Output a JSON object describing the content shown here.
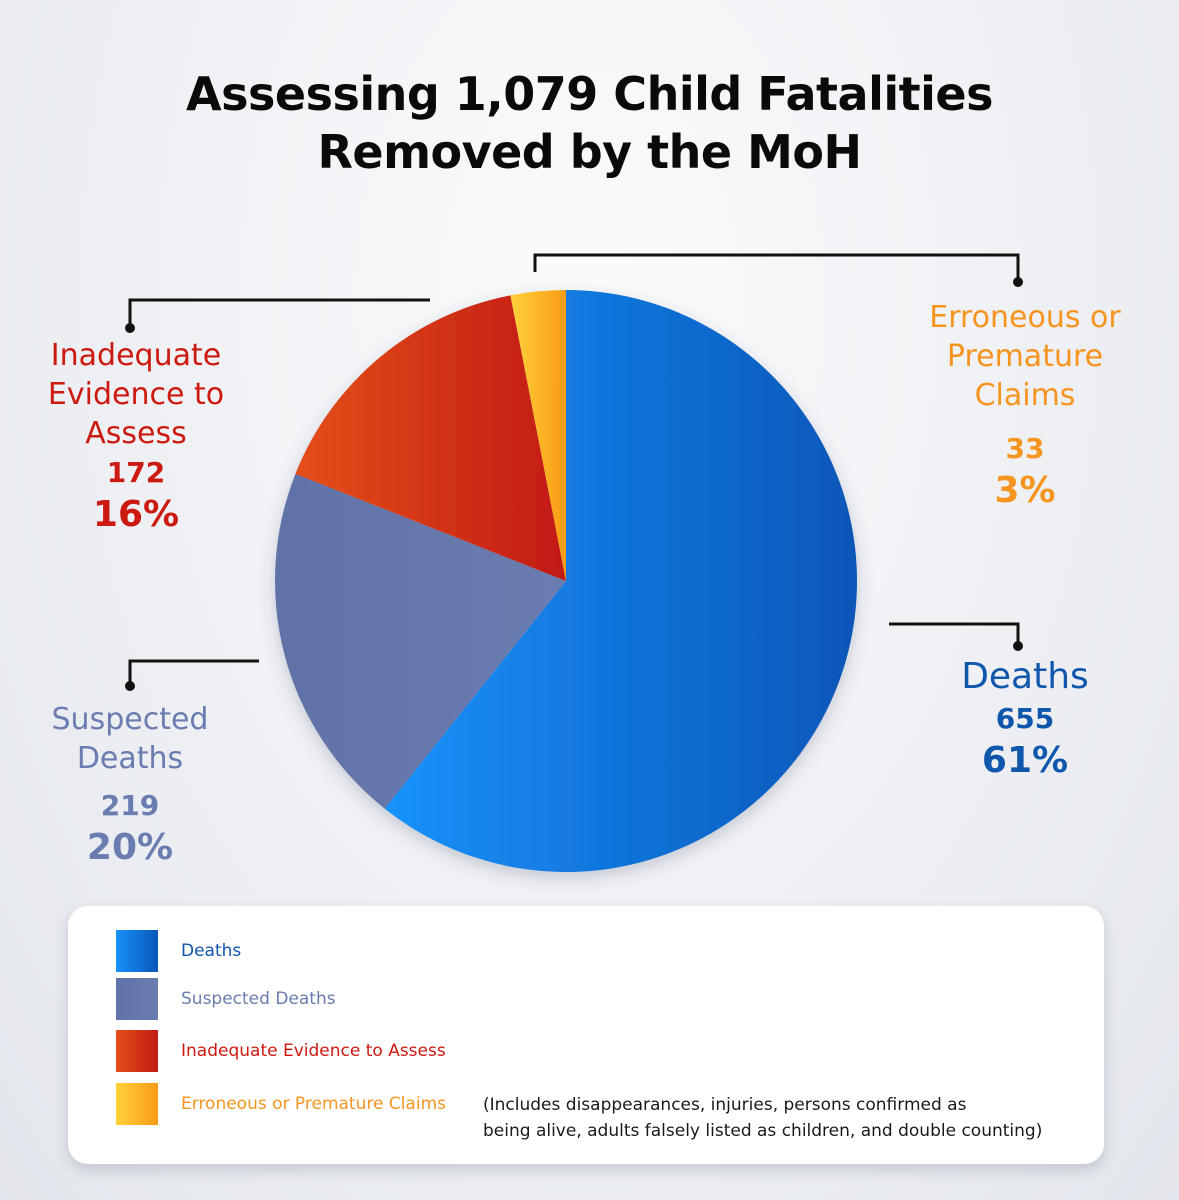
{
  "title": {
    "line1": "Assessing 1,079 Child Fatalities",
    "line2": "Removed by the MoH"
  },
  "chart_data": {
    "type": "pie",
    "total": 1079,
    "slices": [
      {
        "label": "Deaths",
        "value": 655,
        "percent": "61%",
        "color": "#1178e0",
        "label_color": "#0f56ad"
      },
      {
        "label": "Suspected Deaths",
        "value": 219,
        "percent": "20%",
        "color": "#6778ab",
        "label_color": "#6a7cb0"
      },
      {
        "label": "Inadequate Evidence to Assess",
        "value": 172,
        "percent": "16%",
        "color": "#d7361a",
        "label_color": "#cc1a10"
      },
      {
        "label": "Erroneous or Premature Claims",
        "value": 33,
        "percent": "3%",
        "color": "#ffb01c",
        "label_color": "#f5941f"
      }
    ],
    "callouts": {
      "deaths": {
        "name": "Deaths",
        "count": "655",
        "percent": "61%"
      },
      "suspected": {
        "name_lines": [
          "Suspected",
          "Deaths"
        ],
        "count": "219",
        "percent": "20%"
      },
      "inadequate": {
        "name_lines": [
          "Inadequate",
          "Evidence to",
          "Assess"
        ],
        "count": "172",
        "percent": "16%"
      },
      "erroneous": {
        "name_lines": [
          "Erroneous or",
          "Premature",
          "Claims"
        ],
        "count": "33",
        "percent": "3%"
      }
    }
  },
  "legend": {
    "items": [
      {
        "label": "Deaths"
      },
      {
        "label": "Suspected Deaths"
      },
      {
        "label": "Inadequate Evidence to Assess"
      },
      {
        "label": "Erroneous or Premature Claims"
      }
    ],
    "note_line1": "(Includes disappearances, injuries, persons confirmed as",
    "note_line2": "being alive, adults falsely listed as children, and double counting)"
  }
}
